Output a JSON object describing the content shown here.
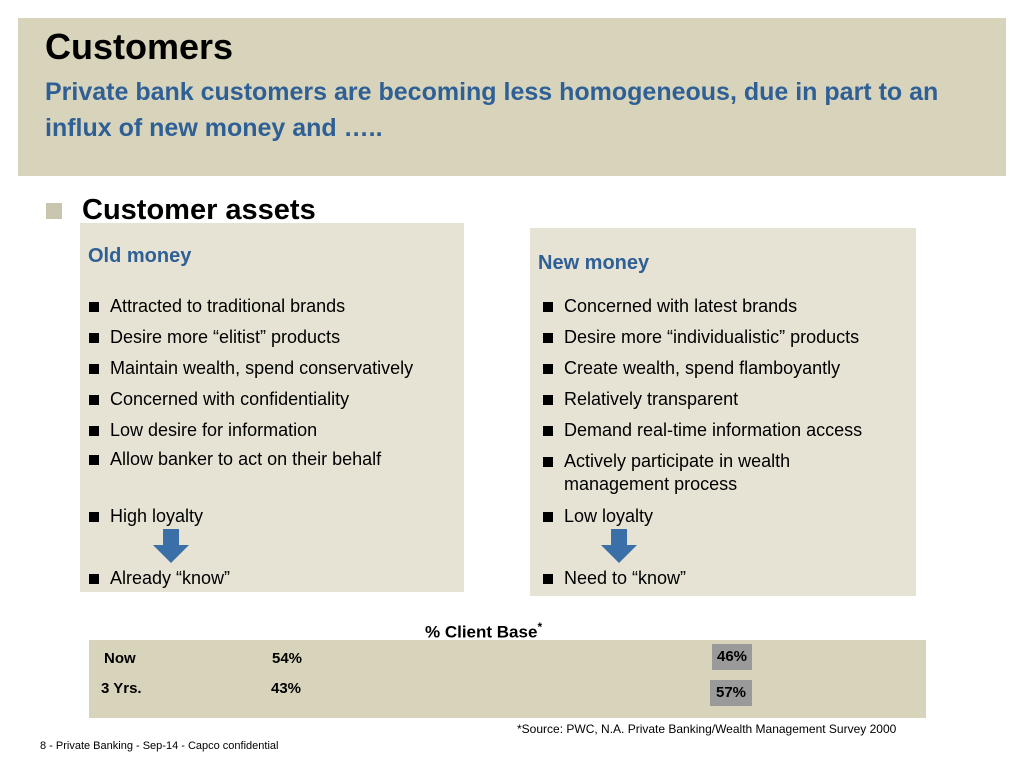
{
  "header": {
    "title": "Customers",
    "subtitle": "Private bank customers are becoming less homogeneous, due in part to an influx of new money and ….."
  },
  "section": {
    "heading": "Customer assets"
  },
  "old_money": {
    "title": "Old money",
    "items": [
      "Attracted to traditional brands",
      "Desire more “elitist” products",
      "Maintain wealth, spend conservatively",
      "Concerned with confidentiality",
      "Low desire for information",
      "Allow banker to act on their behalf",
      "High loyalty",
      "Already “know”"
    ]
  },
  "new_money": {
    "title": "New money",
    "items": [
      "Concerned with latest brands",
      "Desire more “individualistic” products",
      "Create wealth, spend flamboyantly",
      "Relatively transparent",
      "Demand real-time information access",
      "Actively participate in wealth management process",
      "Low loyalty",
      "Need to “know”"
    ]
  },
  "chart_data": {
    "type": "bar",
    "title": "% Client Base",
    "title_footnote_marker": "*",
    "categories": [
      "Now",
      "3 Yrs."
    ],
    "series": [
      {
        "values": [
          54,
          43
        ],
        "value_labels": [
          "54%",
          "43%"
        ]
      },
      {
        "values": [
          46,
          57
        ],
        "value_labels": [
          "46%",
          "57%"
        ],
        "color": "#9a9a9a"
      }
    ],
    "background": "#d8d4bc"
  },
  "source_note": "*Source:  PWC, N.A.  Private Banking/Wealth Management Survey 2000",
  "footer": "8 - Private Banking  - Sep-14 - Capco confidential",
  "colors": {
    "accent": "#2e5f95",
    "panel": "#e6e2d4",
    "header": "#d8d4bc",
    "arrow": "#3a6fa8"
  },
  "icons": {
    "bullet": "square-bullet",
    "arrow": "down-arrow-icon"
  }
}
